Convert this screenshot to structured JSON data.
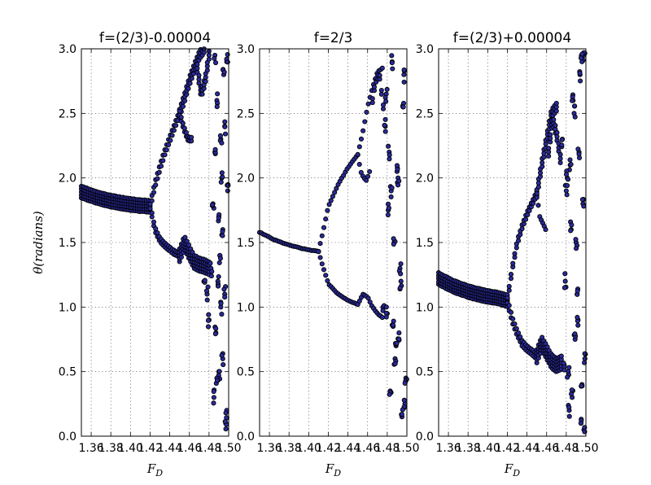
{
  "chart_data": [
    {
      "type": "scatter",
      "title": "f=(2/3)-0.00004",
      "xlabel": "F_D",
      "ylabel": "θ(radians)",
      "xlim": [
        1.35,
        1.5
      ],
      "ylim": [
        0,
        3
      ],
      "x_ticks": [
        1.36,
        1.38,
        1.4,
        1.42,
        1.44,
        1.46,
        1.48,
        1.5
      ],
      "x_tick_labels": [
        "1.36",
        "1.38",
        "1.40",
        "1.42",
        "1.44",
        "1.46",
        "1.48",
        "1.50"
      ],
      "y_ticks": [
        0,
        0.5,
        1,
        1.5,
        2,
        2.5,
        3
      ],
      "y_tick_labels": [
        "0.0",
        "0.5",
        "1.0",
        "1.5",
        "2.0",
        "2.5",
        "3.0"
      ],
      "grid": true,
      "marker_color": "#2b2b9e",
      "branches": [
        {
          "x": [
            1.35,
            1.365,
            1.38,
            1.395,
            1.41,
            1.42
          ],
          "y": [
            1.89,
            1.85,
            1.82,
            1.8,
            1.785,
            1.78
          ],
          "width": 0.09
        },
        {
          "x": [
            1.42,
            1.425,
            1.43,
            1.435,
            1.44,
            1.445,
            1.45
          ],
          "y": [
            1.78,
            1.95,
            2.08,
            2.2,
            2.3,
            2.4,
            2.5
          ],
          "width": 0.04
        },
        {
          "x": [
            1.45,
            1.455,
            1.46,
            1.465,
            1.47,
            1.475
          ],
          "y": [
            2.5,
            2.62,
            2.75,
            2.85,
            2.95,
            3.0
          ],
          "width": 0.06
        },
        {
          "x": [
            1.45,
            1.453,
            1.456,
            1.459,
            1.462
          ],
          "y": [
            2.5,
            2.42,
            2.35,
            2.3,
            2.3
          ],
          "width": 0.03
        },
        {
          "x": [
            1.42,
            1.425,
            1.43,
            1.435,
            1.44,
            1.445,
            1.45
          ],
          "y": [
            1.78,
            1.6,
            1.52,
            1.48,
            1.45,
            1.42,
            1.4
          ],
          "width": 0.03
        },
        {
          "x": [
            1.45,
            1.455,
            1.46,
            1.465,
            1.47,
            1.475,
            1.48
          ],
          "y": [
            1.4,
            1.5,
            1.42,
            1.35,
            1.33,
            1.32,
            1.3
          ],
          "width": 0.1
        },
        {
          "x": [
            1.468,
            1.472,
            1.476,
            1.48
          ],
          "y": [
            2.85,
            2.65,
            2.75,
            2.95
          ],
          "width": 0.06
        }
      ],
      "scatter_points": {
        "x": [
          1.475,
          1.478,
          1.48,
          1.482,
          1.484,
          1.486,
          1.488,
          1.49,
          1.492,
          1.494,
          1.496,
          1.498,
          1.485,
          1.487,
          1.489,
          1.491,
          1.493,
          1.495,
          1.497,
          1.499,
          1.486,
          1.488,
          1.49,
          1.492,
          1.494,
          1.496,
          1.498
        ],
        "y": [
          1.2,
          1.1,
          0.9,
          1.3,
          1.8,
          2.2,
          2.6,
          0.5,
          1.0,
          1.6,
          2.4,
          0.2,
          0.3,
          0.8,
          1.2,
          1.4,
          2.0,
          2.8,
          0.1,
          1.9,
          2.95,
          0.45,
          1.7,
          2.3,
          0.6,
          1.1,
          2.9
        ]
      }
    },
    {
      "type": "scatter",
      "title": "f=2/3",
      "xlabel": "F_D",
      "ylabel": "",
      "xlim": [
        1.35,
        1.5
      ],
      "ylim": [
        0,
        3
      ],
      "x_ticks": [
        1.36,
        1.38,
        1.4,
        1.42,
        1.44,
        1.46,
        1.48,
        1.5
      ],
      "x_tick_labels": [
        "1.36",
        "1.38",
        "1.40",
        "1.42",
        "1.44",
        "1.46",
        "1.48",
        "1.50"
      ],
      "y_ticks": [
        0,
        0.5,
        1,
        1.5,
        2,
        2.5,
        3
      ],
      "y_tick_labels": [
        "0.0",
        "0.5",
        "1.0",
        "1.5",
        "2.0",
        "2.5",
        "3.0"
      ],
      "grid": true,
      "marker_color": "#2b2b9e",
      "branches": [
        {
          "x": [
            1.35,
            1.365,
            1.38,
            1.395,
            1.41
          ],
          "y": [
            1.58,
            1.52,
            1.48,
            1.45,
            1.43
          ],
          "width": 0.02
        },
        {
          "x": [
            1.41,
            1.415,
            1.42,
            1.43,
            1.44,
            1.45
          ],
          "y": [
            1.43,
            1.6,
            1.78,
            1.95,
            2.08,
            2.18
          ],
          "width": 0.01
        },
        {
          "x": [
            1.45,
            1.453,
            1.456,
            1.459,
            1.462
          ],
          "y": [
            2.18,
            2.05,
            2.0,
            1.98,
            2.05
          ],
          "width": 0.01
        },
        {
          "x": [
            1.45,
            1.455,
            1.46,
            1.465,
            1.47,
            1.475
          ],
          "y": [
            2.18,
            2.35,
            2.55,
            2.7,
            2.82,
            2.85
          ],
          "width": 0.015
        },
        {
          "x": [
            1.41,
            1.415,
            1.42,
            1.43,
            1.44,
            1.45
          ],
          "y": [
            1.43,
            1.3,
            1.18,
            1.1,
            1.05,
            1.02
          ],
          "width": 0.01
        },
        {
          "x": [
            1.45,
            1.455,
            1.46,
            1.465,
            1.47,
            1.475
          ],
          "y": [
            1.02,
            1.1,
            1.08,
            1.0,
            0.95,
            0.92
          ],
          "width": 0.02
        },
        {
          "x": [
            1.465,
            1.468,
            1.472,
            1.476
          ],
          "y": [
            2.6,
            2.75,
            2.8,
            2.55
          ],
          "width": 0.03
        }
      ],
      "scatter_points": {
        "x": [
          1.476,
          1.478,
          1.48,
          1.482,
          1.484,
          1.486,
          1.488,
          1.49,
          1.492,
          1.494,
          1.496,
          1.498,
          1.479,
          1.481,
          1.483,
          1.485,
          1.487,
          1.489,
          1.491,
          1.493,
          1.495,
          1.497,
          1.499
        ],
        "y": [
          1.0,
          2.4,
          0.95,
          2.2,
          1.9,
          0.85,
          0.6,
          2.05,
          0.8,
          1.2,
          2.55,
          0.25,
          2.65,
          1.75,
          0.35,
          2.9,
          1.5,
          0.7,
          2.0,
          1.3,
          0.15,
          2.8,
          0.45
        ]
      }
    },
    {
      "type": "scatter",
      "title": "f=(2/3)+0.00004",
      "xlabel": "F_D",
      "ylabel": "",
      "xlim": [
        1.35,
        1.5
      ],
      "ylim": [
        0,
        3
      ],
      "x_ticks": [
        1.36,
        1.38,
        1.4,
        1.42,
        1.44,
        1.46,
        1.48,
        1.5
      ],
      "x_tick_labels": [
        "1.36",
        "1.38",
        "1.40",
        "1.42",
        "1.44",
        "1.46",
        "1.48",
        "1.50"
      ],
      "y_ticks": [
        0,
        0.5,
        1,
        1.5,
        2,
        2.5,
        3
      ],
      "y_tick_labels": [
        "0.0",
        "0.5",
        "1.0",
        "1.5",
        "2.0",
        "2.5",
        "3.0"
      ],
      "grid": true,
      "marker_color": "#2b2b9e",
      "branches": [
        {
          "x": [
            1.35,
            1.365,
            1.38,
            1.395,
            1.41,
            1.42
          ],
          "y": [
            1.22,
            1.16,
            1.12,
            1.09,
            1.07,
            1.05
          ],
          "width": 0.09
        },
        {
          "x": [
            1.42,
            1.425,
            1.43,
            1.435,
            1.44,
            1.445,
            1.45
          ],
          "y": [
            1.05,
            1.3,
            1.5,
            1.62,
            1.72,
            1.8,
            1.88
          ],
          "width": 0.03
        },
        {
          "x": [
            1.45,
            1.453,
            1.456,
            1.459
          ],
          "y": [
            1.88,
            1.7,
            1.65,
            1.6
          ],
          "width": 0.02
        },
        {
          "x": [
            1.45,
            1.455,
            1.46,
            1.465,
            1.47
          ],
          "y": [
            1.88,
            2.1,
            2.3,
            2.5,
            2.55
          ],
          "width": 0.06
        },
        {
          "x": [
            1.462,
            1.466,
            1.47,
            1.474
          ],
          "y": [
            2.2,
            2.45,
            2.35,
            2.15
          ],
          "width": 0.06
        },
        {
          "x": [
            1.42,
            1.425,
            1.43,
            1.435,
            1.44,
            1.445,
            1.45
          ],
          "y": [
            1.05,
            0.9,
            0.8,
            0.72,
            0.68,
            0.65,
            0.62
          ],
          "width": 0.04
        },
        {
          "x": [
            1.45,
            1.455,
            1.46,
            1.465,
            1.47,
            1.475
          ],
          "y": [
            0.62,
            0.72,
            0.65,
            0.58,
            0.55,
            0.57
          ],
          "width": 0.1
        }
      ],
      "scatter_points": {
        "x": [
          1.476,
          1.478,
          1.48,
          1.482,
          1.484,
          1.486,
          1.488,
          1.49,
          1.492,
          1.494,
          1.496,
          1.498,
          1.479,
          1.481,
          1.483,
          1.485,
          1.487,
          1.489,
          1.491,
          1.493,
          1.495,
          1.497,
          1.499,
          1.496,
          1.498
        ],
        "y": [
          2.3,
          0.55,
          1.9,
          0.5,
          2.1,
          0.3,
          2.5,
          1.5,
          0.9,
          2.8,
          0.4,
          2.95,
          1.2,
          2.0,
          0.2,
          1.6,
          2.6,
          0.75,
          1.1,
          2.2,
          0.1,
          1.8,
          0.6,
          2.9,
          0.05
        ]
      }
    }
  ]
}
